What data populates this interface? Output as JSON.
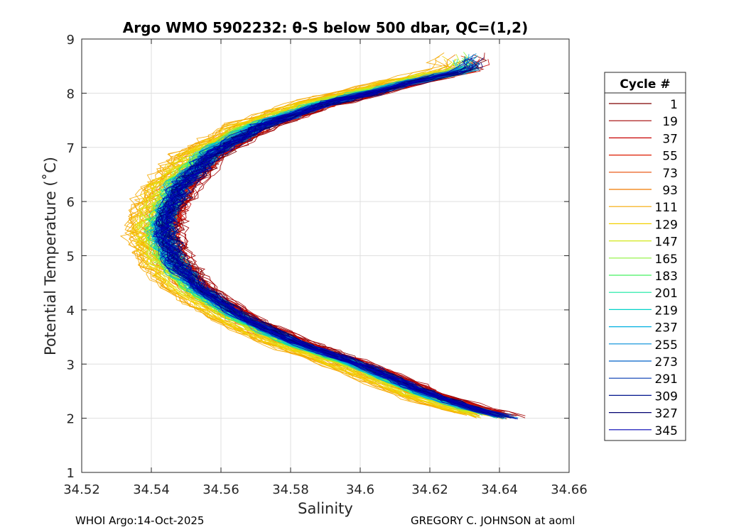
{
  "chart_data": {
    "type": "line",
    "title": "Argo WMO 5902232: θ-S below 500 dbar,  QC=(1,2)",
    "xlabel": "Salinity",
    "ylabel": "Potential Temperature (˚C)",
    "xlim": [
      34.52,
      34.66
    ],
    "ylim": [
      1,
      9
    ],
    "xticks": [
      "34.52",
      "34.54",
      "34.56",
      "34.58",
      "34.6",
      "34.62",
      "34.64",
      "34.66"
    ],
    "yticks": [
      "1",
      "2",
      "3",
      "4",
      "5",
      "6",
      "7",
      "8",
      "9"
    ],
    "grid": true,
    "legend": {
      "title": "Cycle #",
      "placement": "right-outside",
      "entries": [
        {
          "cycle": "1",
          "color": "#7f0000"
        },
        {
          "cycle": "19",
          "color": "#a30000"
        },
        {
          "cycle": "37",
          "color": "#c80000"
        },
        {
          "cycle": "55",
          "color": "#de1a00"
        },
        {
          "cycle": "73",
          "color": "#e84a00"
        },
        {
          "cycle": "93",
          "color": "#f07a00"
        },
        {
          "cycle": "111",
          "color": "#f5a800"
        },
        {
          "cycle": "129",
          "color": "#f2d000"
        },
        {
          "cycle": "147",
          "color": "#d2e81a"
        },
        {
          "cycle": "165",
          "color": "#8ef23a"
        },
        {
          "cycle": "183",
          "color": "#46f060"
        },
        {
          "cycle": "201",
          "color": "#14e8a0"
        },
        {
          "cycle": "219",
          "color": "#00d2c8"
        },
        {
          "cycle": "237",
          "color": "#00b0e0"
        },
        {
          "cycle": "255",
          "color": "#008ed8"
        },
        {
          "cycle": "273",
          "color": "#0060c8"
        },
        {
          "cycle": "291",
          "color": "#0038b0"
        },
        {
          "cycle": "309",
          "color": "#00148c"
        },
        {
          "cycle": "327",
          "color": "#000070"
        },
        {
          "cycle": "345",
          "color": "#0000b4"
        }
      ]
    },
    "curve_model": {
      "description": "each profile traces a theta-S curve: salinity minimum near 34.540 at 5.5 C, rising to ~34.64 at 2 C and ~34.63 at 8.4 C",
      "base_points": [
        [
          34.642,
          2.0
        ],
        [
          34.63,
          2.2
        ],
        [
          34.618,
          2.45
        ],
        [
          34.6,
          2.95
        ],
        [
          34.58,
          3.4
        ],
        [
          34.565,
          3.85
        ],
        [
          34.552,
          4.4
        ],
        [
          34.545,
          4.9
        ],
        [
          34.542,
          5.4
        ],
        [
          34.543,
          5.8
        ],
        [
          34.547,
          6.3
        ],
        [
          34.556,
          6.9
        ],
        [
          34.57,
          7.4
        ],
        [
          34.588,
          7.8
        ],
        [
          34.61,
          8.15
        ],
        [
          34.63,
          8.45
        ]
      ],
      "jitter_lower": 0.003,
      "jitter_upper": 0.005,
      "offsets_by_cycle": {
        "1": 0.004,
        "19": 0.004,
        "37": 0.003,
        "55": 0.002,
        "73": 0.001,
        "93": -0.003,
        "111": -0.008,
        "129": -0.005,
        "147": -0.003,
        "165": -0.001,
        "183": 0.0,
        "201": 0.0,
        "219": 0.001,
        "237": 0.0,
        "255": 0.001,
        "273": 0.001,
        "291": 0.001,
        "309": 0.002,
        "327": 0.002,
        "345": 0.0015
      }
    }
  },
  "footer": {
    "left": "WHOI Argo:14-Oct-2025",
    "right": "GREGORY C. JOHNSON at aoml"
  }
}
